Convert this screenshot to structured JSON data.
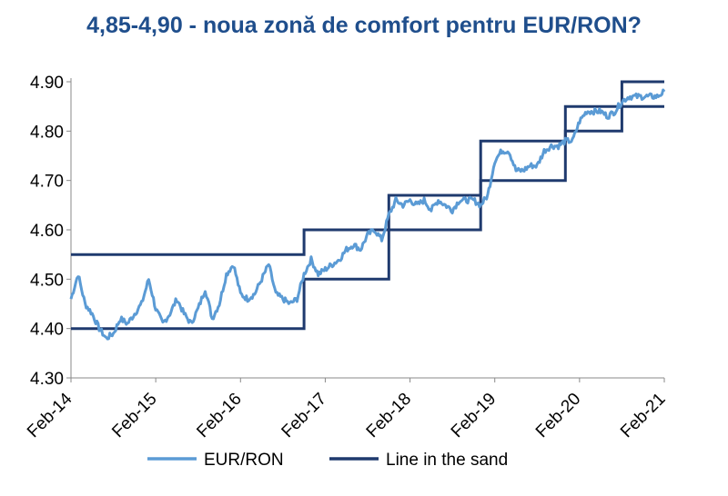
{
  "chart_data": {
    "type": "line",
    "title": "4,85-4,90 - noua zonă de comfort pentru EUR/RON?",
    "xlabel": "",
    "ylabel": "",
    "x_range": [
      "2014-02",
      "2021-02"
    ],
    "ylim": [
      4.3,
      4.9
    ],
    "y_ticks": [
      "4.30",
      "4.40",
      "4.50",
      "4.60",
      "4.70",
      "4.80",
      "4.90"
    ],
    "x_ticks": [
      "Feb-14",
      "Feb-15",
      "Feb-16",
      "Feb-17",
      "Feb-18",
      "Feb-19",
      "Feb-20",
      "Feb-21"
    ],
    "grid": false,
    "legend_position": "bottom",
    "colors": {
      "eurron": "#5b9bd5",
      "band": "#1f3a6e"
    },
    "series": [
      {
        "name": "EUR/RON",
        "values": [
          [
            "2014-02",
            4.46
          ],
          [
            "2014-03",
            4.51
          ],
          [
            "2014-04",
            4.45
          ],
          [
            "2014-05",
            4.43
          ],
          [
            "2014-06",
            4.4
          ],
          [
            "2014-07",
            4.38
          ],
          [
            "2014-08",
            4.39
          ],
          [
            "2014-09",
            4.42
          ],
          [
            "2014-10",
            4.41
          ],
          [
            "2014-11",
            4.43
          ],
          [
            "2014-12",
            4.45
          ],
          [
            "2015-01",
            4.5
          ],
          [
            "2015-02",
            4.44
          ],
          [
            "2015-03",
            4.41
          ],
          [
            "2015-04",
            4.43
          ],
          [
            "2015-05",
            4.46
          ],
          [
            "2015-06",
            4.43
          ],
          [
            "2015-07",
            4.41
          ],
          [
            "2015-08",
            4.44
          ],
          [
            "2015-09",
            4.48
          ],
          [
            "2015-10",
            4.42
          ],
          [
            "2015-11",
            4.45
          ],
          [
            "2015-12",
            4.51
          ],
          [
            "2016-01",
            4.53
          ],
          [
            "2016-02",
            4.47
          ],
          [
            "2016-03",
            4.46
          ],
          [
            "2016-04",
            4.47
          ],
          [
            "2016-05",
            4.5
          ],
          [
            "2016-06",
            4.53
          ],
          [
            "2016-07",
            4.47
          ],
          [
            "2016-08",
            4.46
          ],
          [
            "2016-09",
            4.45
          ],
          [
            "2016-10",
            4.46
          ],
          [
            "2016-11",
            4.51
          ],
          [
            "2016-12",
            4.54
          ],
          [
            "2017-01",
            4.51
          ],
          [
            "2017-02",
            4.52
          ],
          [
            "2017-03",
            4.53
          ],
          [
            "2017-04",
            4.54
          ],
          [
            "2017-05",
            4.56
          ],
          [
            "2017-06",
            4.57
          ],
          [
            "2017-07",
            4.56
          ],
          [
            "2017-08",
            4.59
          ],
          [
            "2017-09",
            4.6
          ],
          [
            "2017-10",
            4.58
          ],
          [
            "2017-11",
            4.63
          ],
          [
            "2017-12",
            4.66
          ],
          [
            "2018-01",
            4.65
          ],
          [
            "2018-02",
            4.66
          ],
          [
            "2018-03",
            4.65
          ],
          [
            "2018-04",
            4.66
          ],
          [
            "2018-05",
            4.64
          ],
          [
            "2018-06",
            4.66
          ],
          [
            "2018-07",
            4.65
          ],
          [
            "2018-08",
            4.64
          ],
          [
            "2018-09",
            4.66
          ],
          [
            "2018-10",
            4.66
          ],
          [
            "2018-11",
            4.66
          ],
          [
            "2018-12",
            4.65
          ],
          [
            "2019-01",
            4.67
          ],
          [
            "2019-02",
            4.74
          ],
          [
            "2019-03",
            4.76
          ],
          [
            "2019-04",
            4.76
          ],
          [
            "2019-05",
            4.72
          ],
          [
            "2019-06",
            4.72
          ],
          [
            "2019-07",
            4.73
          ],
          [
            "2019-08",
            4.73
          ],
          [
            "2019-09",
            4.76
          ],
          [
            "2019-10",
            4.77
          ],
          [
            "2019-11",
            4.77
          ],
          [
            "2019-12",
            4.78
          ],
          [
            "2020-01",
            4.78
          ],
          [
            "2020-02",
            4.82
          ],
          [
            "2020-03",
            4.84
          ],
          [
            "2020-04",
            4.84
          ],
          [
            "2020-05",
            4.84
          ],
          [
            "2020-06",
            4.83
          ],
          [
            "2020-07",
            4.84
          ],
          [
            "2020-08",
            4.86
          ],
          [
            "2020-09",
            4.87
          ],
          [
            "2020-10",
            4.87
          ],
          [
            "2020-11",
            4.87
          ],
          [
            "2020-12",
            4.87
          ],
          [
            "2021-01",
            4.87
          ],
          [
            "2021-02",
            4.88
          ]
        ]
      },
      {
        "name": "Line in the sand",
        "bands": [
          [
            "2014-02",
            "2016-11",
            4.4,
            4.55
          ],
          [
            "2016-11",
            "2017-11",
            4.5,
            4.6
          ],
          [
            "2017-11",
            "2018-12",
            4.6,
            4.67
          ],
          [
            "2018-12",
            "2019-12",
            4.7,
            4.78
          ],
          [
            "2019-12",
            "2020-08",
            4.8,
            4.85
          ],
          [
            "2020-08",
            "2021-02",
            4.85,
            4.9
          ]
        ]
      }
    ]
  }
}
